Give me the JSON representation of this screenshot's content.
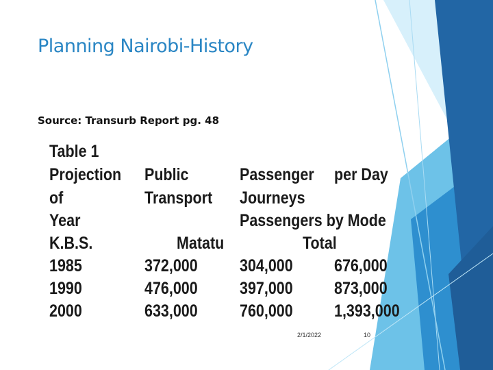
{
  "slide": {
    "title": "Planning Nairobi-History",
    "source": "Source: Transurb Report pg. 48"
  },
  "table": {
    "caption": "Table 1",
    "col1": [
      "Projection",
      "of",
      "Year",
      "K.B.S."
    ],
    "col2": [
      "Public",
      "Transport"
    ],
    "col3": [
      "Passenger",
      "Journeys",
      "Passengers by Mode"
    ],
    "col4": [
      "per Day"
    ],
    "mode_label": "Matatu",
    "total_label": "Total",
    "rows": [
      {
        "year": "1985",
        "public": "372,000",
        "matatu": "304,000",
        "total": "676,000"
      },
      {
        "year": "1990",
        "public": "476,000",
        "matatu": "397,000",
        "total": "873,000"
      },
      {
        "year": "2000",
        "public": "633,000",
        "matatu": "760,000",
        "total": "1,393,000"
      }
    ]
  },
  "footer": {
    "date": "2/1/2022",
    "page": "10"
  },
  "colors": {
    "title": "#2a86c4",
    "accent_dark": "#2266a5",
    "accent_mid": "#2e8fcf",
    "accent_light": "#a9dbf3"
  }
}
